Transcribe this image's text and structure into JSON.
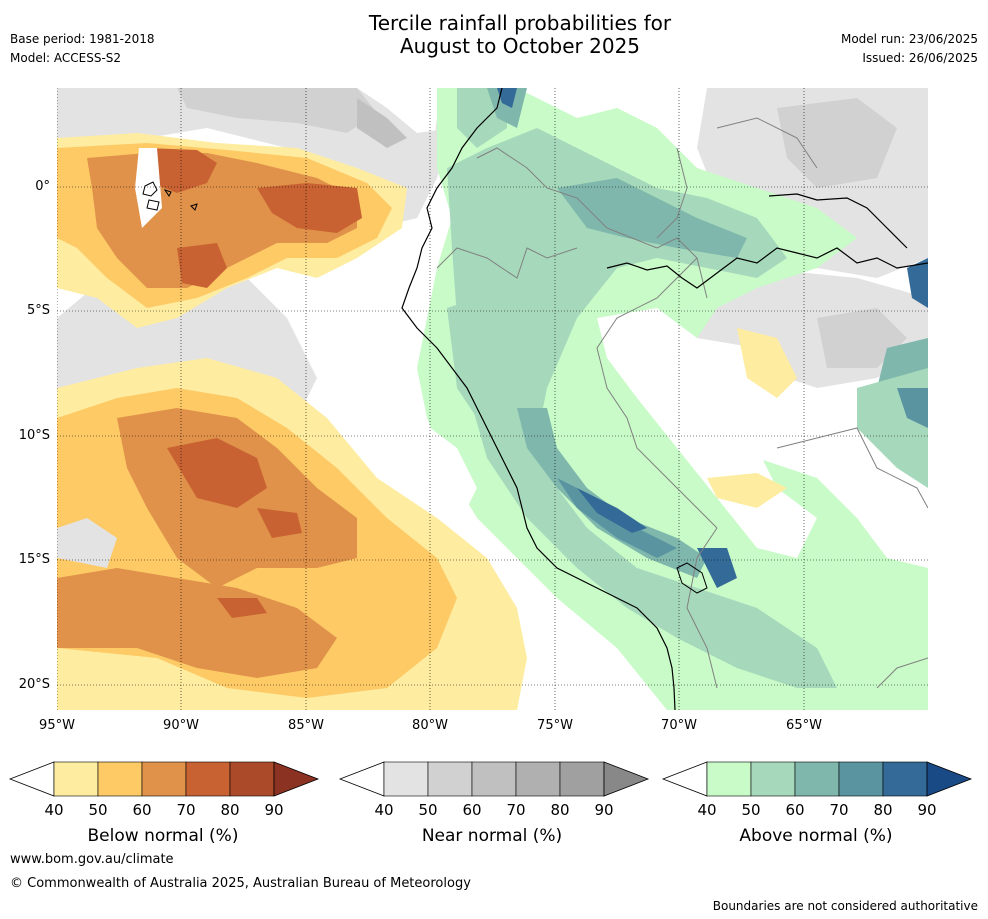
{
  "header": {
    "title_line1": "Tercile rainfall probabilities for",
    "title_line2": "August to October 2025",
    "base_period": "Base period: 1981-2018",
    "model": "Model: ACCESS-S2",
    "model_run": "Model run: 23/06/2025",
    "issued": "Issued: 26/06/2025"
  },
  "map": {
    "lat_labels": [
      "0°",
      "5°S",
      "10°S",
      "15°S",
      "20°S"
    ],
    "lon_labels": [
      "95°W",
      "90°W",
      "85°W",
      "80°W",
      "75°W",
      "70°W",
      "65°W"
    ]
  },
  "colorbars": [
    {
      "title": "Below normal (%)",
      "ticks": [
        "40",
        "50",
        "60",
        "70",
        "80",
        "90"
      ],
      "colors": [
        "#ffffff",
        "#feeca0",
        "#fdca66",
        "#e0924a",
        "#c96232",
        "#ab4a28",
        "#8c3223"
      ]
    },
    {
      "title": "Near normal (%)",
      "ticks": [
        "40",
        "50",
        "60",
        "70",
        "80",
        "90"
      ],
      "colors": [
        "#ffffff",
        "#e3e3e3",
        "#d1d1d1",
        "#c0c0c0",
        "#b0b0b0",
        "#a0a0a0",
        "#888888"
      ]
    },
    {
      "title": "Above normal (%)",
      "ticks": [
        "40",
        "50",
        "60",
        "70",
        "80",
        "90"
      ],
      "colors": [
        "#ffffff",
        "#c8fbc8",
        "#a6d9bb",
        "#7fb7ac",
        "#5b94a1",
        "#346a97",
        "#1a4a85"
      ]
    }
  ],
  "footer": {
    "website": "www.bom.gov.au/climate",
    "copyright": "© Commonwealth of Australia 2025, Australian Bureau of Meteorology",
    "disclaimer": "Boundaries are not considered authoritative"
  }
}
